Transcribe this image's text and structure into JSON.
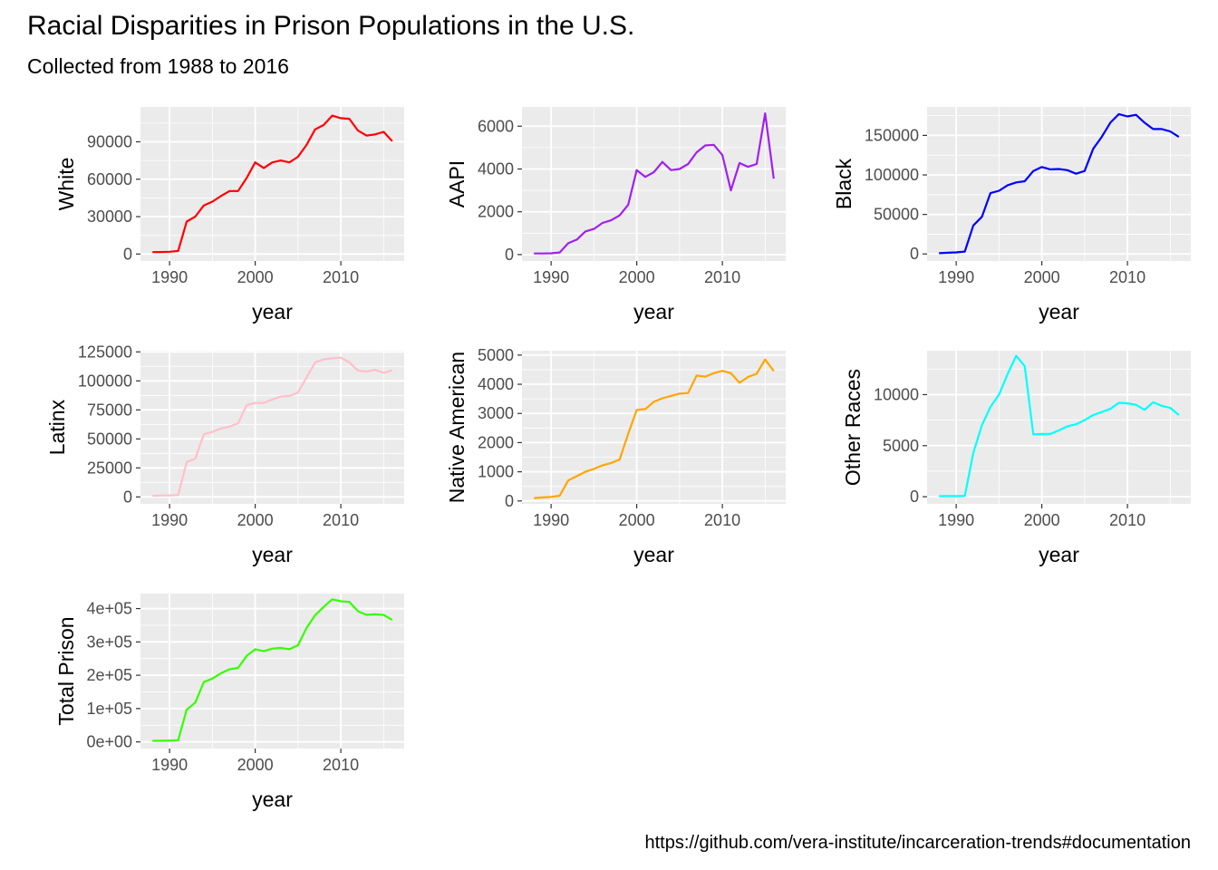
{
  "title": "Racial Disparities in Prison Populations in the U.S.",
  "subtitle": "Collected from 1988 to 2016",
  "caption": "https://github.com/vera-institute/incarceration-trends#documentation",
  "chart_data": [
    {
      "type": "line",
      "ylabel": "White",
      "xlabel": "year",
      "color": "#ff0000",
      "xlim": [
        1986.6,
        2017.4
      ],
      "ylim": [
        -5600,
        118000
      ],
      "x_ticks": [
        1990,
        2000,
        2010
      ],
      "x_tick_labels": [
        "1990",
        "2000",
        "2010"
      ],
      "y_ticks": [
        0,
        30000,
        60000,
        90000
      ],
      "y_tick_labels": [
        "0",
        "30000",
        "60000",
        "90000"
      ],
      "grid": true,
      "x": [
        1988,
        1989,
        1990,
        1991,
        1992,
        1993,
        1994,
        1995,
        1996,
        1997,
        1998,
        1999,
        2000,
        2001,
        2002,
        2003,
        2004,
        2005,
        2006,
        2007,
        2008,
        2009,
        2010,
        2011,
        2012,
        2013,
        2014,
        2015,
        2016
      ],
      "values": [
        1500,
        1600,
        1800,
        2500,
        26000,
        30000,
        39000,
        42000,
        46500,
        50500,
        50500,
        61000,
        73500,
        69000,
        73500,
        75000,
        73500,
        78000,
        87500,
        100000,
        103500,
        111000,
        109000,
        108500,
        99000,
        95000,
        96000,
        98000,
        90500
      ]
    },
    {
      "type": "line",
      "ylabel": "AAPI",
      "xlabel": "year",
      "color": "#a020f0",
      "xlim": [
        1986.6,
        2017.4
      ],
      "ylim": [
        -300,
        6900
      ],
      "x_ticks": [
        1990,
        2000,
        2010
      ],
      "x_tick_labels": [
        "1990",
        "2000",
        "2010"
      ],
      "y_ticks": [
        0,
        2000,
        4000,
        6000
      ],
      "y_tick_labels": [
        "0",
        "2000",
        "4000",
        "6000"
      ],
      "grid": true,
      "x": [
        1988,
        1989,
        1990,
        1991,
        1992,
        1993,
        1994,
        1995,
        1996,
        1997,
        1998,
        1999,
        2000,
        2001,
        2002,
        2003,
        2004,
        2005,
        2006,
        2007,
        2008,
        2009,
        2010,
        2011,
        2012,
        2013,
        2014,
        2015,
        2016
      ],
      "values": [
        50,
        50,
        60,
        100,
        530,
        700,
        1080,
        1200,
        1480,
        1600,
        1830,
        2330,
        3950,
        3630,
        3850,
        4330,
        3950,
        4000,
        4230,
        4780,
        5100,
        5130,
        4650,
        3000,
        4280,
        4100,
        4230,
        6600,
        3550
      ]
    },
    {
      "type": "line",
      "ylabel": "Black",
      "xlabel": "year",
      "color": "#0000ff",
      "xlim": [
        1986.6,
        2017.4
      ],
      "ylim": [
        -8900,
        186000
      ],
      "x_ticks": [
        1990,
        2000,
        2010
      ],
      "x_tick_labels": [
        "1990",
        "2000",
        "2010"
      ],
      "y_ticks": [
        0,
        50000,
        100000,
        150000
      ],
      "y_tick_labels": [
        "0",
        "50000",
        "100000",
        "150000"
      ],
      "grid": true,
      "x": [
        1988,
        1989,
        1990,
        1991,
        1992,
        1993,
        1994,
        1995,
        1996,
        1997,
        1998,
        1999,
        2000,
        2001,
        2002,
        2003,
        2004,
        2005,
        2006,
        2007,
        2008,
        2009,
        2010,
        2011,
        2012,
        2013,
        2014,
        2015,
        2016
      ],
      "values": [
        1000,
        1500,
        2000,
        3000,
        36000,
        47000,
        77000,
        80000,
        87000,
        90500,
        92000,
        105000,
        110000,
        107000,
        107500,
        106000,
        101500,
        105000,
        133000,
        148000,
        166000,
        177000,
        174000,
        176000,
        166000,
        158000,
        158000,
        155000,
        148000
      ]
    },
    {
      "type": "line",
      "ylabel": "Latinx",
      "xlabel": "year",
      "color": "#ffc0cb",
      "xlim": [
        1986.6,
        2017.4
      ],
      "ylim": [
        -6000,
        126000
      ],
      "x_ticks": [
        1990,
        2000,
        2010
      ],
      "x_tick_labels": [
        "1990",
        "2000",
        "2010"
      ],
      "y_ticks": [
        0,
        25000,
        50000,
        75000,
        100000,
        125000
      ],
      "y_tick_labels": [
        "0",
        "25000",
        "50000",
        "75000",
        "100000",
        "125000"
      ],
      "grid": true,
      "x": [
        1988,
        1989,
        1990,
        1991,
        1992,
        1993,
        1994,
        1995,
        1996,
        1997,
        1998,
        1999,
        2000,
        2001,
        2002,
        2003,
        2004,
        2005,
        2006,
        2007,
        2008,
        2009,
        2010,
        2011,
        2012,
        2013,
        2014,
        2015,
        2016
      ],
      "values": [
        1000,
        1200,
        1300,
        1500,
        30000,
        33000,
        54000,
        56000,
        59000,
        60500,
        63500,
        79000,
        81000,
        81000,
        84000,
        86500,
        87000,
        90000,
        103000,
        116000,
        118500,
        119500,
        120000,
        116000,
        109000,
        108000,
        109500,
        107000,
        109000
      ]
    },
    {
      "type": "line",
      "ylabel": "Native American",
      "xlabel": "year",
      "color": "#ffa500",
      "xlim": [
        1986.6,
        2017.4
      ],
      "ylim": [
        -100,
        5150
      ],
      "x_ticks": [
        1990,
        2000,
        2010
      ],
      "x_tick_labels": [
        "1990",
        "2000",
        "2010"
      ],
      "y_ticks": [
        0,
        1000,
        2000,
        3000,
        4000,
        5000
      ],
      "y_tick_labels": [
        "0",
        "1000",
        "2000",
        "3000",
        "4000",
        "5000"
      ],
      "grid": true,
      "x": [
        1988,
        1989,
        1990,
        1991,
        1992,
        1993,
        1994,
        1995,
        1996,
        1997,
        1998,
        1999,
        2000,
        2001,
        2002,
        2003,
        2004,
        2005,
        2006,
        2007,
        2008,
        2009,
        2010,
        2011,
        2012,
        2013,
        2014,
        2015,
        2016
      ],
      "values": [
        100,
        120,
        140,
        180,
        700,
        850,
        1000,
        1100,
        1220,
        1300,
        1420,
        2300,
        3120,
        3150,
        3400,
        3520,
        3600,
        3680,
        3700,
        4300,
        4260,
        4380,
        4460,
        4380,
        4050,
        4250,
        4360,
        4850,
        4450
      ]
    },
    {
      "type": "line",
      "ylabel": "Other Races",
      "xlabel": "year",
      "color": "#00ffff",
      "xlim": [
        1986.6,
        2017.4
      ],
      "ylim": [
        -700,
        14300
      ],
      "x_ticks": [
        1990,
        2000,
        2010
      ],
      "x_tick_labels": [
        "1990",
        "2000",
        "2010"
      ],
      "y_ticks": [
        0,
        5000,
        10000
      ],
      "y_tick_labels": [
        "0",
        "5000",
        "10000"
      ],
      "grid": true,
      "x": [
        1988,
        1989,
        1990,
        1991,
        1992,
        1993,
        1994,
        1995,
        1996,
        1997,
        1998,
        1999,
        2000,
        2001,
        2002,
        2003,
        2004,
        2005,
        2006,
        2007,
        2008,
        2009,
        2010,
        2011,
        2012,
        2013,
        2014,
        2015,
        2016
      ],
      "values": [
        50,
        60,
        60,
        70,
        4300,
        7000,
        8800,
        10000,
        12000,
        13800,
        12800,
        6100,
        6150,
        6150,
        6500,
        6900,
        7100,
        7500,
        8000,
        8300,
        8600,
        9200,
        9150,
        9000,
        8500,
        9250,
        8900,
        8700,
        8000
      ]
    },
    {
      "type": "line",
      "ylabel": "Total Prison",
      "xlabel": "year",
      "color": "#33ff00",
      "xlim": [
        1986.6,
        2017.4
      ],
      "ylim": [
        -20000,
        445000
      ],
      "x_ticks": [
        1990,
        2000,
        2010
      ],
      "x_tick_labels": [
        "1990",
        "2000",
        "2010"
      ],
      "y_ticks": [
        0,
        100000,
        200000,
        300000,
        400000
      ],
      "y_tick_labels": [
        "0e+00",
        "1e+05",
        "2e+05",
        "3e+05",
        "4e+05"
      ],
      "grid": true,
      "x": [
        1988,
        1989,
        1990,
        1991,
        1992,
        1993,
        1994,
        1995,
        1996,
        1997,
        1998,
        1999,
        2000,
        2001,
        2002,
        2003,
        2004,
        2005,
        2006,
        2007,
        2008,
        2009,
        2010,
        2011,
        2012,
        2013,
        2014,
        2015,
        2016
      ],
      "values": [
        3000,
        3500,
        4000,
        5000,
        97000,
        118000,
        180000,
        190000,
        206000,
        218000,
        222000,
        258000,
        278000,
        272000,
        280000,
        282000,
        278000,
        290000,
        342000,
        380000,
        405000,
        428000,
        422000,
        420000,
        392000,
        381000,
        383000,
        381000,
        366000
      ]
    }
  ]
}
